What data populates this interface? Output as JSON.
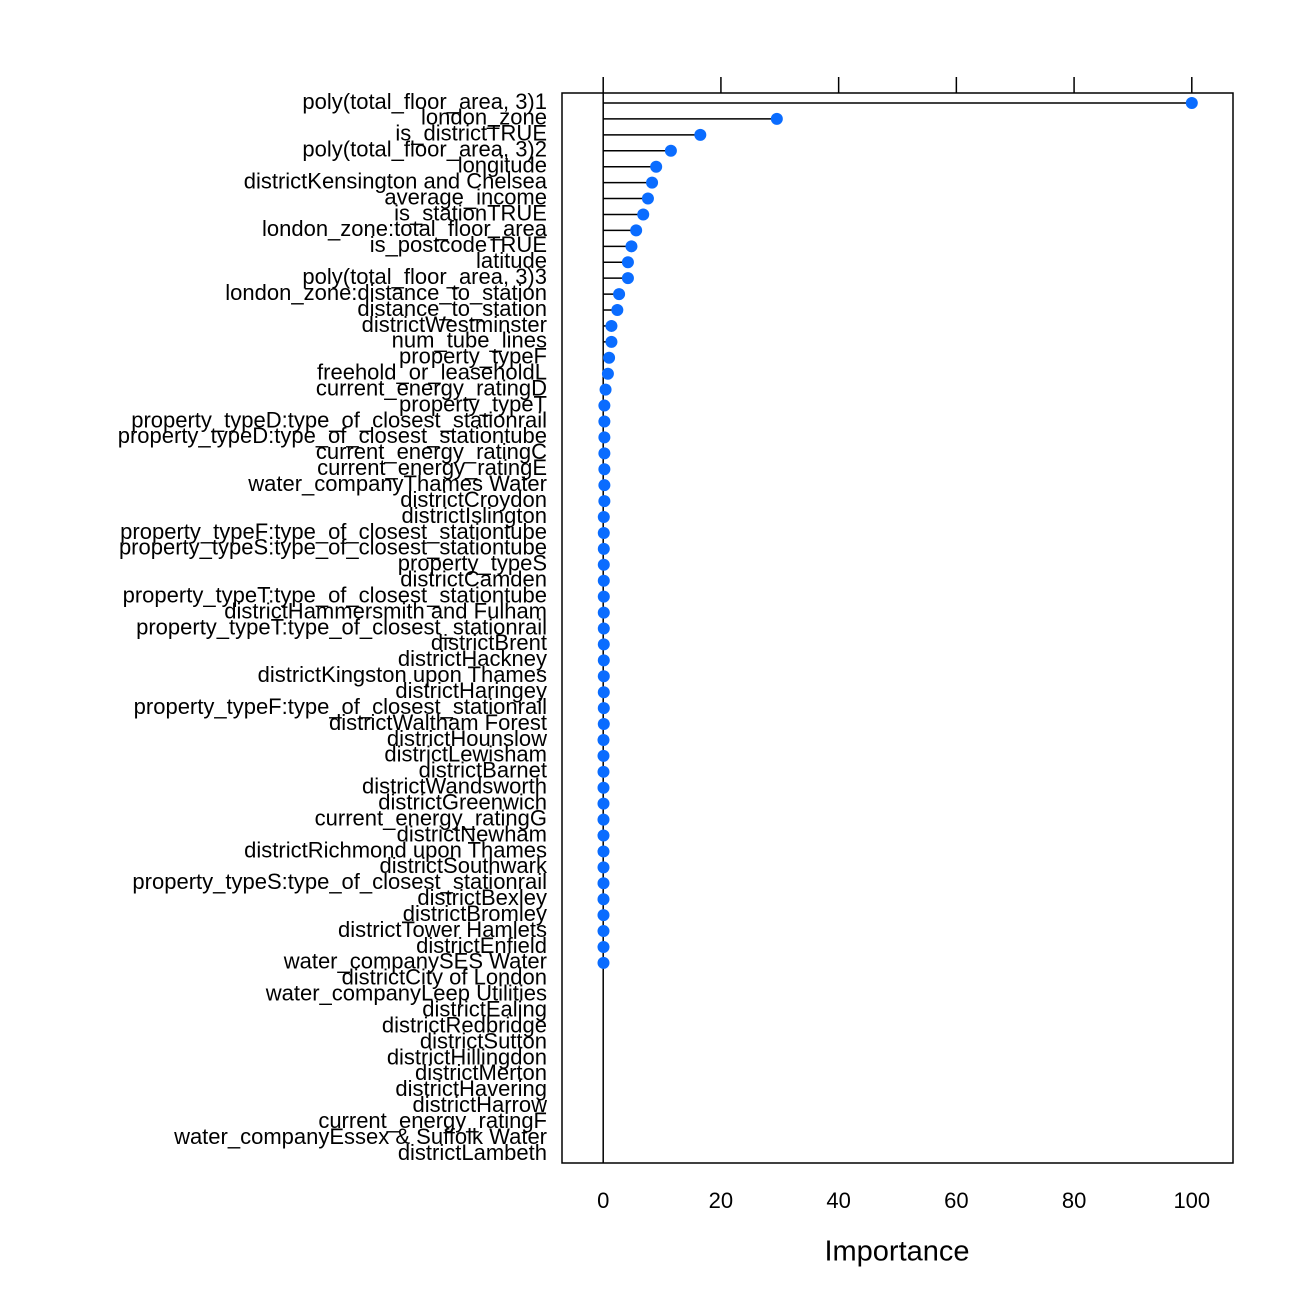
{
  "chart_data": {
    "type": "dotplot",
    "x_label": "Importance",
    "color": "#0a6cff",
    "categories": [
      "poly(total_floor_area, 3)1",
      "london_zone",
      "is_districtTRUE",
      "poly(total_floor_area, 3)2",
      "longitude",
      "districtKensington and Chelsea",
      "average_income",
      "is_stationTRUE",
      "london_zone:total_floor_area",
      "is_postcodeTRUE",
      "latitude",
      "poly(total_floor_area, 3)3",
      "london_zone:distance_to_station",
      "distance_to_station",
      "districtWestminster",
      "num_tube_lines",
      "property_typeF",
      "freehold_or_leaseholdL",
      "current_energy_ratingD",
      "property_typeT",
      "property_typeD:type_of_closest_stationrail",
      "property_typeD:type_of_closest_stationtube",
      "current_energy_ratingC",
      "current_energy_ratingE",
      "water_companyThames Water",
      "districtCroydon",
      "districtIslington",
      "property_typeF:type_of_closest_stationtube",
      "property_typeS:type_of_closest_stationtube",
      "property_typeS",
      "districtCamden",
      "property_typeT:type_of_closest_stationtube",
      "districtHammersmith and Fulham",
      "property_typeT:type_of_closest_stationrail",
      "districtBrent",
      "districtHackney",
      "districtKingston upon Thames",
      "districtHaringey",
      "property_typeF:type_of_closest_stationrail",
      "districtWaltham Forest",
      "districtHounslow",
      "districtLewisham",
      "districtBarnet",
      "districtWandsworth",
      "districtGreenwich",
      "current_energy_ratingG",
      "districtNewham",
      "districtRichmond upon Thames",
      "districtSouthwark",
      "property_typeS:type_of_closest_stationrail",
      "districtBexley",
      "districtBromley",
      "districtTower Hamlets",
      "districtEnfield",
      "water_companySES Water",
      "districtCity of London",
      "water_companyLeep Utilities",
      "districtEaling",
      "districtRedbridge",
      "districtSutton",
      "districtHillingdon",
      "districtMerton",
      "districtHavering",
      "districtHarrow",
      "current_energy_ratingF",
      "water_companyEssex & Suffolk Water",
      "districtLambeth"
    ],
    "values": [
      100,
      29.5,
      16.5,
      11.5,
      9.0,
      8.3,
      7.6,
      6.8,
      5.6,
      4.8,
      4.2,
      4.2,
      2.7,
      2.4,
      1.4,
      1.4,
      1.0,
      0.8,
      0.4,
      0.2,
      0.2,
      0.2,
      0.2,
      0.2,
      0.2,
      0.2,
      0.1,
      0.1,
      0.1,
      0.1,
      0.1,
      0.1,
      0.1,
      0.1,
      0.1,
      0.1,
      0.1,
      0.1,
      0.1,
      0.1,
      0.05,
      0.05,
      0.05,
      0.05,
      0.05,
      0.05,
      0.05,
      0.05,
      0.05,
      0.05,
      0.05,
      0.05,
      0.05,
      0.05,
      0.05,
      null,
      null,
      null,
      null,
      null,
      null,
      null,
      null,
      null,
      null,
      null,
      null
    ],
    "xlim": [
      -7,
      107
    ],
    "xticks": [
      0,
      20,
      40,
      60,
      80,
      100
    ]
  }
}
